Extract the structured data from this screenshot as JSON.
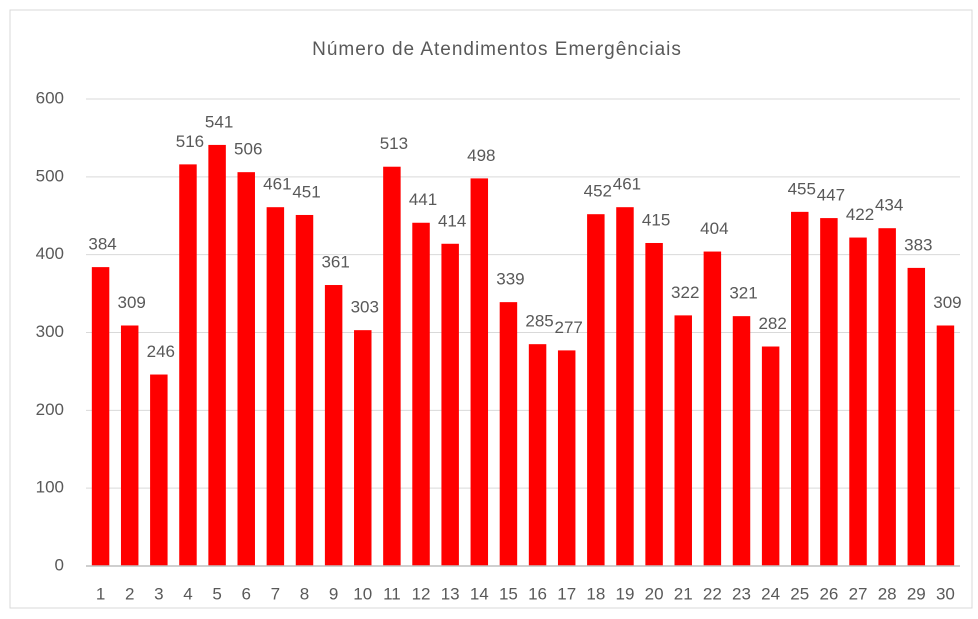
{
  "chart_data": {
    "type": "bar",
    "title": "Número de  Atendimentos  Emergênciais",
    "categories": [
      "1",
      "2",
      "3",
      "4",
      "5",
      "6",
      "7",
      "8",
      "9",
      "10",
      "11",
      "12",
      "13",
      "14",
      "15",
      "16",
      "17",
      "18",
      "19",
      "20",
      "21",
      "22",
      "23",
      "24",
      "25",
      "26",
      "27",
      "28",
      "29",
      "30"
    ],
    "values": [
      384,
      309,
      246,
      516,
      541,
      506,
      461,
      451,
      361,
      303,
      513,
      441,
      414,
      498,
      339,
      285,
      277,
      452,
      461,
      415,
      322,
      404,
      321,
      282,
      455,
      447,
      422,
      434,
      383,
      309
    ],
    "color": "#ff0000",
    "ylim": [
      0,
      600
    ],
    "yticks": [
      0,
      100,
      200,
      300,
      400,
      500,
      600
    ],
    "grid": true
  }
}
